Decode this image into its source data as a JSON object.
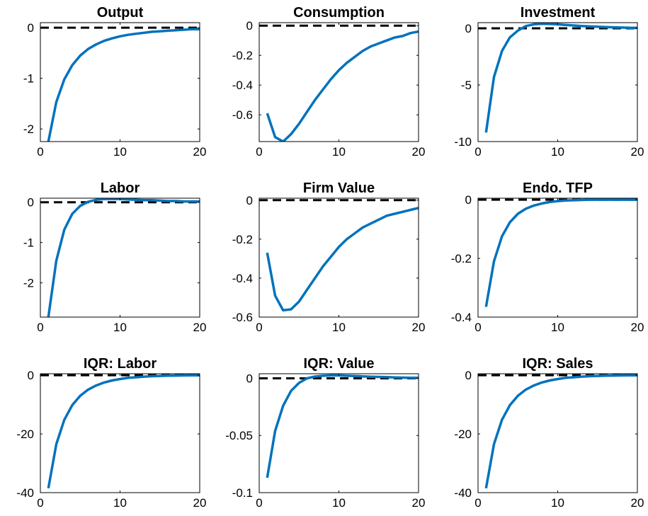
{
  "chart_data": [
    {
      "type": "line",
      "title": "Output",
      "xlabel": "",
      "ylabel": "",
      "xlim": [
        0,
        20
      ],
      "ylim": [
        -2.25,
        0.1
      ],
      "xticks": [
        0,
        10,
        20
      ],
      "yticks": [
        0,
        -1,
        -2
      ],
      "ytick_labels": [
        "0",
        "-1",
        "-2"
      ],
      "zero_line": "black-dashed",
      "series": [
        {
          "color": "#0072BD",
          "x": [
            1,
            2,
            3,
            4,
            5,
            6,
            7,
            8,
            9,
            10,
            11,
            12,
            13,
            14,
            15,
            16,
            17,
            18,
            19,
            20
          ],
          "y": [
            -2.25,
            -1.47,
            -1.02,
            -0.74,
            -0.55,
            -0.42,
            -0.33,
            -0.26,
            -0.21,
            -0.17,
            -0.14,
            -0.12,
            -0.1,
            -0.08,
            -0.07,
            -0.06,
            -0.05,
            -0.04,
            -0.03,
            -0.03
          ]
        }
      ]
    },
    {
      "type": "line",
      "title": "Consumption",
      "xlabel": "",
      "ylabel": "",
      "xlim": [
        0,
        20
      ],
      "ylim": [
        -0.78,
        0.02
      ],
      "xticks": [
        0,
        10,
        20
      ],
      "yticks": [
        0,
        -0.2,
        -0.4,
        -0.6
      ],
      "ytick_labels": [
        "0",
        "-0.2",
        "-0.4",
        "-0.6"
      ],
      "zero_line": "black-dashed",
      "series": [
        {
          "color": "#0072BD",
          "x": [
            1,
            2,
            3,
            4,
            5,
            6,
            7,
            8,
            9,
            10,
            11,
            12,
            13,
            14,
            15,
            16,
            17,
            18,
            19,
            20
          ],
          "y": [
            -0.59,
            -0.75,
            -0.78,
            -0.73,
            -0.66,
            -0.58,
            -0.5,
            -0.43,
            -0.36,
            -0.3,
            -0.25,
            -0.21,
            -0.17,
            -0.14,
            -0.12,
            -0.1,
            -0.08,
            -0.07,
            -0.05,
            -0.04
          ]
        }
      ]
    },
    {
      "type": "line",
      "title": "Investment",
      "xlabel": "",
      "ylabel": "",
      "xlim": [
        0,
        20
      ],
      "ylim": [
        -10,
        0.5
      ],
      "xticks": [
        0,
        10,
        20
      ],
      "yticks": [
        0,
        -5,
        -10
      ],
      "ytick_labels": [
        "0",
        "-5",
        "-10"
      ],
      "zero_line": "black-dashed",
      "series": [
        {
          "color": "#0072BD",
          "x": [
            1,
            2,
            3,
            4,
            5,
            6,
            7,
            8,
            9,
            10,
            11,
            12,
            13,
            14,
            15,
            16,
            17,
            18,
            19,
            20
          ],
          "y": [
            -9.2,
            -4.3,
            -2.0,
            -0.8,
            -0.2,
            0.2,
            0.35,
            0.4,
            0.38,
            0.35,
            0.3,
            0.25,
            0.2,
            0.17,
            0.14,
            0.11,
            0.09,
            0.07,
            0.05,
            0.04
          ]
        }
      ]
    },
    {
      "type": "line",
      "title": "Labor",
      "xlabel": "",
      "ylabel": "",
      "xlim": [
        0,
        20
      ],
      "ylim": [
        -2.85,
        0.1
      ],
      "xticks": [
        0,
        10,
        20
      ],
      "yticks": [
        0,
        -1,
        -2
      ],
      "ytick_labels": [
        "0",
        "-1",
        "-2"
      ],
      "zero_line": "black-dashed",
      "series": [
        {
          "color": "#0072BD",
          "x": [
            1,
            2,
            3,
            4,
            5,
            6,
            7,
            8,
            9,
            10,
            11,
            12,
            13,
            14,
            15,
            16,
            17,
            18,
            19,
            20
          ],
          "y": [
            -2.85,
            -1.45,
            -0.68,
            -0.29,
            -0.09,
            0.01,
            0.06,
            0.08,
            0.08,
            0.08,
            0.07,
            0.06,
            0.05,
            0.05,
            0.04,
            0.03,
            0.03,
            0.02,
            0.02,
            0.02
          ]
        }
      ]
    },
    {
      "type": "line",
      "title": "Firm Value",
      "xlabel": "",
      "ylabel": "",
      "xlim": [
        0,
        20
      ],
      "ylim": [
        -0.6,
        0.01
      ],
      "xticks": [
        0,
        10,
        20
      ],
      "yticks": [
        0,
        -0.2,
        -0.4,
        -0.6
      ],
      "ytick_labels": [
        "0",
        "-0.2",
        "-0.4",
        "-0.6"
      ],
      "zero_line": "black-dashed",
      "series": [
        {
          "color": "#0072BD",
          "x": [
            1,
            2,
            3,
            4,
            5,
            6,
            7,
            8,
            9,
            10,
            11,
            12,
            13,
            14,
            15,
            16,
            17,
            18,
            19,
            20
          ],
          "y": [
            -0.27,
            -0.49,
            -0.565,
            -0.56,
            -0.52,
            -0.46,
            -0.4,
            -0.34,
            -0.29,
            -0.24,
            -0.2,
            -0.17,
            -0.14,
            -0.12,
            -0.1,
            -0.08,
            -0.07,
            -0.06,
            -0.05,
            -0.04
          ]
        }
      ]
    },
    {
      "type": "line",
      "title": "Endo. TFP",
      "xlabel": "",
      "ylabel": "",
      "xlim": [
        0,
        20
      ],
      "ylim": [
        -0.4,
        0.005
      ],
      "xticks": [
        0,
        10,
        20
      ],
      "yticks": [
        0,
        -0.2,
        -0.4
      ],
      "ytick_labels": [
        "0",
        "-0.2",
        "-0.4"
      ],
      "zero_line": "black-dashed",
      "series": [
        {
          "color": "#0072BD",
          "x": [
            1,
            2,
            3,
            4,
            5,
            6,
            7,
            8,
            9,
            10,
            11,
            12,
            13,
            14,
            15,
            16,
            17,
            18,
            19,
            20
          ],
          "y": [
            -0.365,
            -0.21,
            -0.125,
            -0.077,
            -0.048,
            -0.031,
            -0.02,
            -0.013,
            -0.008,
            -0.005,
            -0.003,
            -0.002,
            -0.001,
            0,
            0,
            0,
            0,
            0,
            0,
            0
          ]
        }
      ]
    },
    {
      "type": "line",
      "title": "IQR: Labor",
      "xlabel": "",
      "ylabel": "",
      "xlim": [
        0,
        20
      ],
      "ylim": [
        -40,
        0.5
      ],
      "xticks": [
        0,
        10,
        20
      ],
      "yticks": [
        0,
        -20,
        -40
      ],
      "ytick_labels": [
        "0",
        "-20",
        "-40"
      ],
      "zero_line": "black-dashed",
      "series": [
        {
          "color": "#0072BD",
          "x": [
            1,
            2,
            3,
            4,
            5,
            6,
            7,
            8,
            9,
            10,
            11,
            12,
            13,
            14,
            15,
            16,
            17,
            18,
            19,
            20
          ],
          "y": [
            -38.5,
            -23.5,
            -15.2,
            -10.2,
            -7.0,
            -4.9,
            -3.5,
            -2.5,
            -1.8,
            -1.3,
            -0.9,
            -0.7,
            -0.5,
            -0.35,
            -0.25,
            -0.18,
            -0.12,
            -0.08,
            -0.05,
            -0.03
          ]
        }
      ]
    },
    {
      "type": "line",
      "title": "IQR: Value",
      "xlabel": "",
      "ylabel": "",
      "xlim": [
        0,
        20
      ],
      "ylim": [
        -0.1,
        0.004
      ],
      "xticks": [
        0,
        10,
        20
      ],
      "yticks": [
        0,
        -0.05,
        -0.1
      ],
      "ytick_labels": [
        "0",
        "-0.05",
        "-0.1"
      ],
      "zero_line": "black-dashed",
      "series": [
        {
          "color": "#0072BD",
          "x": [
            1,
            2,
            3,
            4,
            5,
            6,
            7,
            8,
            9,
            10,
            11,
            12,
            13,
            14,
            15,
            16,
            17,
            18,
            19,
            20
          ],
          "y": [
            -0.087,
            -0.046,
            -0.024,
            -0.011,
            -0.004,
            0,
            0.0015,
            0.0022,
            0.0025,
            0.0025,
            0.0022,
            0.002,
            0.0017,
            0.0014,
            0.0012,
            0.001,
            0.0008,
            0.0006,
            0.0005,
            0.0004
          ]
        }
      ]
    },
    {
      "type": "line",
      "title": "IQR: Sales",
      "xlabel": "",
      "ylabel": "",
      "xlim": [
        0,
        20
      ],
      "ylim": [
        -40,
        0.5
      ],
      "xticks": [
        0,
        10,
        20
      ],
      "yticks": [
        0,
        -20,
        -40
      ],
      "ytick_labels": [
        "0",
        "-20",
        "-40"
      ],
      "zero_line": "black-dashed",
      "series": [
        {
          "color": "#0072BD",
          "x": [
            1,
            2,
            3,
            4,
            5,
            6,
            7,
            8,
            9,
            10,
            11,
            12,
            13,
            14,
            15,
            16,
            17,
            18,
            19,
            20
          ],
          "y": [
            -38.5,
            -23.5,
            -15.2,
            -10.2,
            -7.0,
            -4.9,
            -3.5,
            -2.5,
            -1.8,
            -1.3,
            -0.9,
            -0.7,
            -0.5,
            -0.35,
            -0.25,
            -0.18,
            -0.12,
            -0.08,
            -0.05,
            -0.03
          ]
        }
      ]
    }
  ]
}
